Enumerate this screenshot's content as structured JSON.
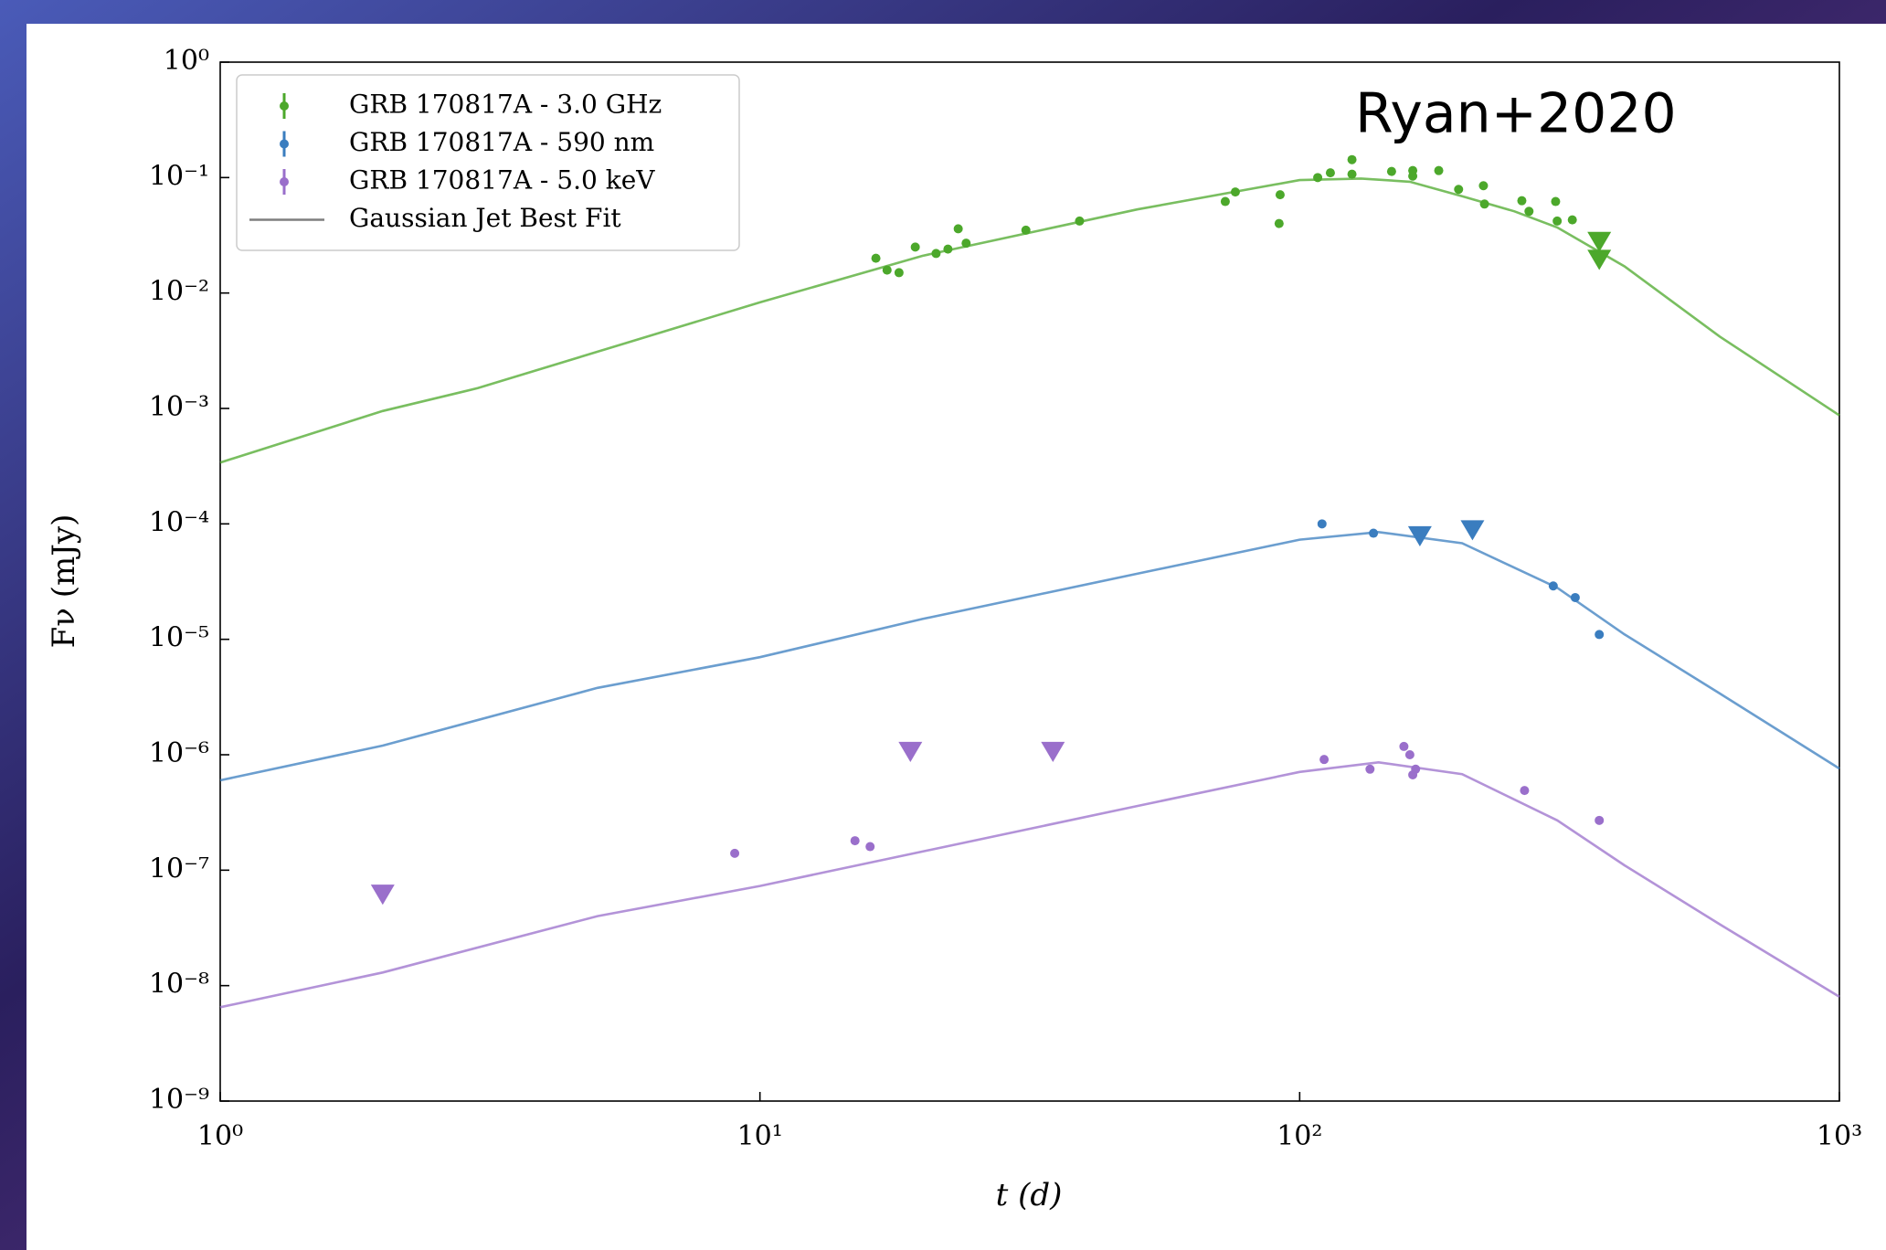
{
  "chart_data": {
    "type": "scatter",
    "xscale": "log",
    "yscale": "log",
    "xlabel": "t (d)",
    "ylabel": "Fν (mJy)",
    "annotation": "Ryan+2020",
    "xlim": [
      1,
      1000
    ],
    "ylim": [
      1e-09,
      1
    ],
    "xticks": [
      {
        "value": 1,
        "label": "10⁰"
      },
      {
        "value": 10,
        "label": "10¹"
      },
      {
        "value": 100,
        "label": "10²"
      },
      {
        "value": 1000,
        "label": "10³"
      }
    ],
    "yticks": [
      {
        "value": 1e-09,
        "label": "10⁻⁹"
      },
      {
        "value": 1e-08,
        "label": "10⁻⁸"
      },
      {
        "value": 1e-07,
        "label": "10⁻⁷"
      },
      {
        "value": 1e-06,
        "label": "10⁻⁶"
      },
      {
        "value": 1e-05,
        "label": "10⁻⁵"
      },
      {
        "value": 0.0001,
        "label": "10⁻⁴"
      },
      {
        "value": 0.001,
        "label": "10⁻³"
      },
      {
        "value": 0.01,
        "label": "10⁻²"
      },
      {
        "value": 0.1,
        "label": "10⁻¹"
      },
      {
        "value": 1,
        "label": "10⁰"
      }
    ],
    "legend": "upper left",
    "fit_label": "Gaussian Jet Best Fit",
    "fit_legend_color": "#7f7f7f",
    "series": [
      {
        "name": "GRB 170817A - 3.0 GHz",
        "color": "#4ca82b",
        "x": [
          16.4,
          17.2,
          18.1,
          19.4,
          21.2,
          22.3,
          23.3,
          24.1,
          31.1,
          39.1,
          72.8,
          76,
          91.6,
          92,
          108,
          114,
          125,
          125,
          148,
          162,
          162,
          181,
          197,
          219,
          220,
          258,
          266,
          298,
          300,
          320
        ],
        "values": [
          0.02,
          0.0158,
          0.015,
          0.025,
          0.022,
          0.024,
          0.036,
          0.027,
          0.035,
          0.042,
          0.062,
          0.075,
          0.04,
          0.071,
          0.1,
          0.11,
          0.143,
          0.107,
          0.113,
          0.103,
          0.115,
          0.115,
          0.079,
          0.085,
          0.059,
          0.063,
          0.051,
          0.062,
          0.042,
          0.043
        ],
        "upper_limits": {
          "x": [
            359,
            359
          ],
          "values": [
            0.028,
            0.0196
          ]
        },
        "fit": {
          "x": [
            1,
            2,
            3,
            5,
            10,
            20,
            50,
            100,
            130,
            160,
            200,
            250,
            300,
            400,
            600,
            1000
          ],
          "values": [
            0.00034,
            0.00095,
            0.0015,
            0.0031,
            0.0083,
            0.021,
            0.053,
            0.095,
            0.098,
            0.092,
            0.069,
            0.051,
            0.037,
            0.017,
            0.0042,
            0.00087
          ]
        }
      },
      {
        "name": "GRB 170817A - 590 nm",
        "color": "#3a7dbf",
        "x": [
          110,
          137,
          295,
          324,
          359
        ],
        "values": [
          0.0001,
          8.3e-05,
          2.9e-05,
          2.3e-05,
          1.1e-05
        ],
        "upper_limits": {
          "x": [
            167,
            209
          ],
          "values": [
            7.9e-05,
            8.9e-05
          ]
        },
        "fit": {
          "x": [
            1,
            2,
            5,
            10,
            20,
            50,
            100,
            140,
            200,
            300,
            400,
            600,
            1000
          ],
          "values": [
            6e-07,
            1.2e-06,
            3.8e-06,
            7e-06,
            1.5e-05,
            3.7e-05,
            7.3e-05,
            8.5e-05,
            6.8e-05,
            2.8e-05,
            1.1e-05,
            3.4e-06,
            7.6e-07
          ]
        }
      },
      {
        "name": "GRB 170817A - 5.0 keV",
        "color": "#9a6fcb",
        "x": [
          8.98,
          15,
          16,
          111,
          135,
          156,
          160,
          162,
          164,
          261,
          359
        ],
        "values": [
          1.4e-07,
          1.8e-07,
          1.6e-07,
          9.1e-07,
          7.5e-07,
          1.18e-06,
          1e-06,
          6.7e-07,
          7.5e-07,
          4.9e-07,
          2.7e-07
        ],
        "upper_limits": {
          "x": [
            2,
            19,
            34.9
          ],
          "values": [
            6.2e-08,
            1.07e-06,
            1.07e-06
          ]
        },
        "fit": {
          "x": [
            1,
            2,
            5,
            10,
            50,
            100,
            140,
            200,
            300,
            400,
            600,
            1000
          ],
          "values": [
            6.5e-09,
            1.3e-08,
            4e-08,
            7.3e-08,
            3.6e-07,
            7.1e-07,
            8.6e-07,
            6.8e-07,
            2.7e-07,
            1.1e-07,
            3.4e-08,
            8e-09
          ]
        }
      }
    ]
  }
}
